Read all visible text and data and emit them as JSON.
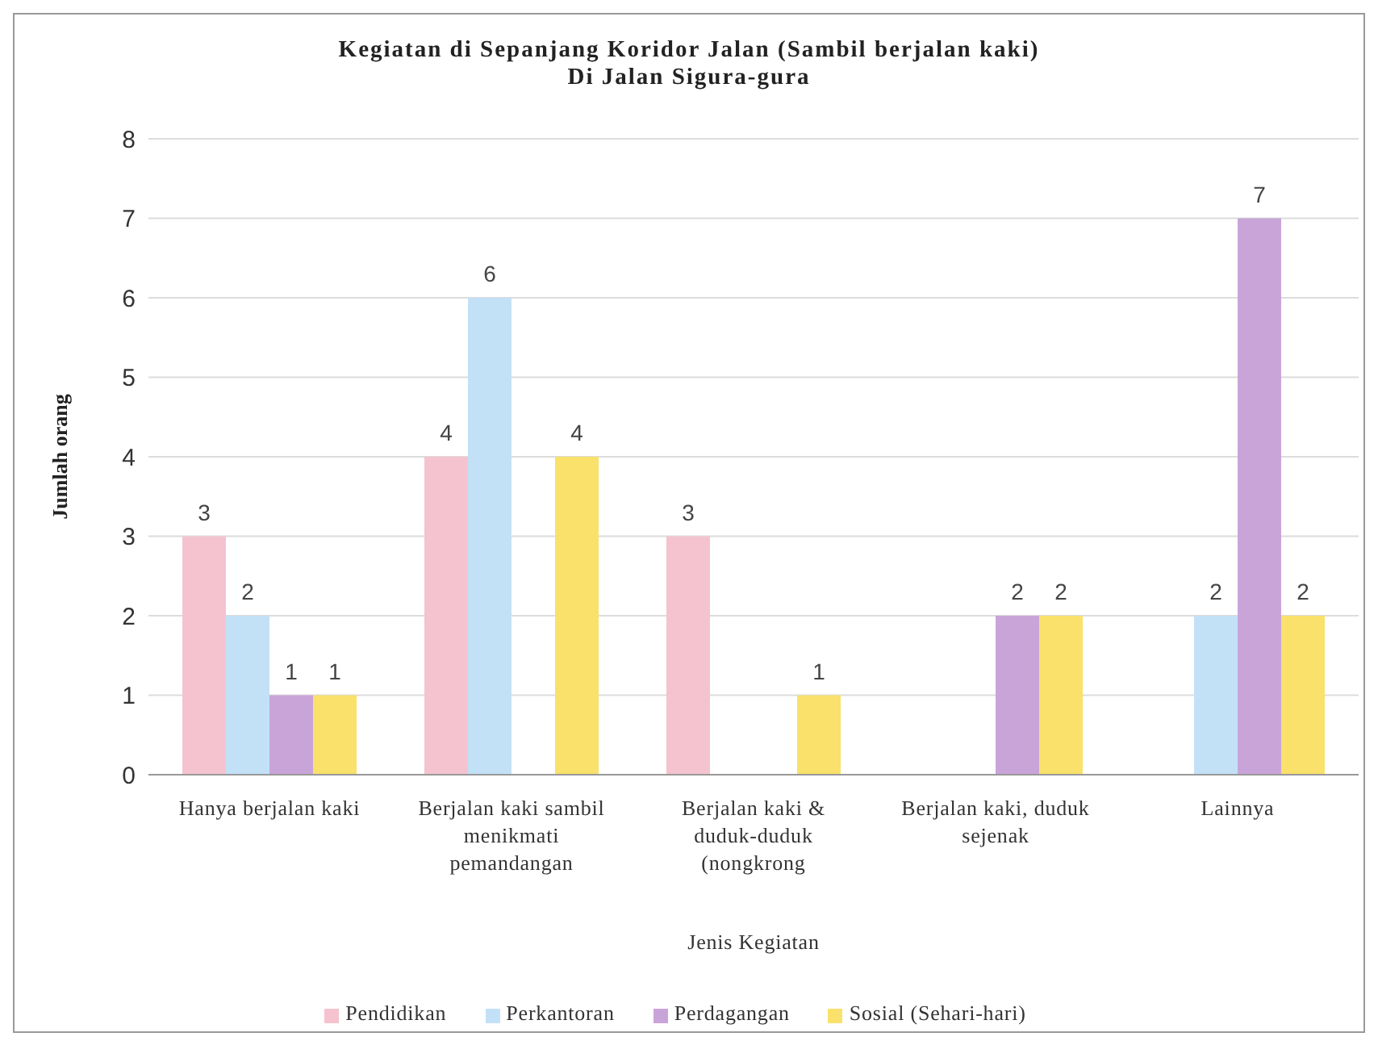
{
  "chart_data": {
    "type": "bar",
    "title": "Kegiatan di Sepanjang Koridor Jalan (Sambil berjalan kaki)\nDi Jalan Sigura-gura",
    "xlabel": "Jenis Kegiatan",
    "ylabel": "Jumlah orang",
    "categories": [
      "Hanya berjalan kaki",
      "Berjalan kaki sambil menikmati pemandangan",
      "Berjalan kaki & duduk-duduk (nongkrong",
      "Berjalan kaki, duduk sejenak",
      "Lainnya"
    ],
    "series": [
      {
        "name": "Pendidikan",
        "color": "#f4c3cf",
        "values": [
          3,
          4,
          3,
          null,
          null
        ]
      },
      {
        "name": "Perkantoran",
        "color": "#c3e1f6",
        "values": [
          2,
          6,
          null,
          null,
          2
        ]
      },
      {
        "name": "Perdagangan",
        "color": "#c9a4d9",
        "values": [
          1,
          null,
          null,
          2,
          7
        ]
      },
      {
        "name": "Sosial (Sehari-hari)",
        "color": "#f9e16b",
        "values": [
          1,
          4,
          1,
          2,
          2
        ]
      }
    ],
    "ylim": [
      0,
      8
    ],
    "yticks": [
      0,
      1,
      2,
      3,
      4,
      5,
      6,
      7,
      8
    ],
    "grid": "y",
    "legend": "bottom",
    "data_labels": true
  }
}
